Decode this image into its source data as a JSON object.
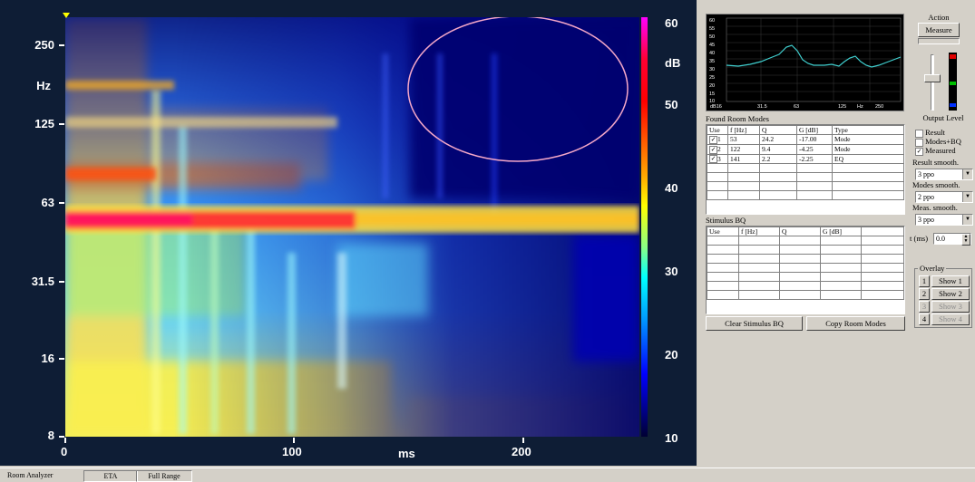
{
  "plot": {
    "y_ticks": [
      "250",
      "125",
      "63",
      "31.5",
      "16",
      "8"
    ],
    "y_unit": "Hz",
    "x_ticks": [
      "0",
      "100",
      "200"
    ],
    "x_unit": "ms",
    "colorbar_ticks": [
      "60",
      "50",
      "40",
      "30",
      "20",
      "10"
    ],
    "colorbar_unit": "dB",
    "colors": {
      "hot": "#ff0040",
      "mid": "#ffff00",
      "cool": "#00ffff",
      "cold": "#0000c0",
      "highlight_circle": "#f4a7c8"
    }
  },
  "mini_plot": {
    "y_ticks": [
      "60",
      "55",
      "50",
      "45",
      "40",
      "35",
      "30",
      "25",
      "20",
      "15",
      "10"
    ],
    "x_ticks": [
      "dB16",
      "31.5",
      "63",
      "125",
      "Hz",
      "250"
    ]
  },
  "room_modes": {
    "title": "Found Room Modes",
    "headers": [
      "Use",
      "f [Hz]",
      "Q",
      "G [dB]",
      "Type"
    ],
    "rows": [
      [
        "1",
        "53",
        "24.2",
        "-17.00",
        "Mode"
      ],
      [
        "2",
        "122",
        "9.4",
        "-4.25",
        "Mode"
      ],
      [
        "3",
        "141",
        "2.2",
        "-2.25",
        "EQ"
      ]
    ]
  },
  "stimulus_bq": {
    "title": "Stimulus BQ",
    "headers": [
      "Use",
      "f [Hz]",
      "Q",
      "G [dB]"
    ]
  },
  "buttons": {
    "clear": "Clear Stimulus BQ",
    "copy": "Copy Room Modes"
  },
  "action": {
    "title": "Action",
    "measure": "Measure",
    "output_level": "Output Level"
  },
  "display": {
    "result": "Result",
    "modes_bq": "Modes+BQ",
    "measured": "Measured"
  },
  "smoothing": {
    "result_label": "Result smooth.",
    "result_value": "3 ppo",
    "modes_label": "Modes smooth.",
    "modes_value": "2 ppo",
    "meas_label": "Meas. smooth.",
    "meas_value": "3 ppo",
    "t_label": "t (ms)",
    "t_value": "0.0"
  },
  "overlay": {
    "title": "Overlay",
    "items": [
      {
        "num": "1",
        "label": "Show 1"
      },
      {
        "num": "2",
        "label": "Show 2"
      },
      {
        "num": "3",
        "label": "Show 3"
      },
      {
        "num": "4",
        "label": "Show 4"
      }
    ]
  },
  "status": {
    "app": "Room Analyzer",
    "mode": "ETA",
    "range": "Full Range"
  }
}
